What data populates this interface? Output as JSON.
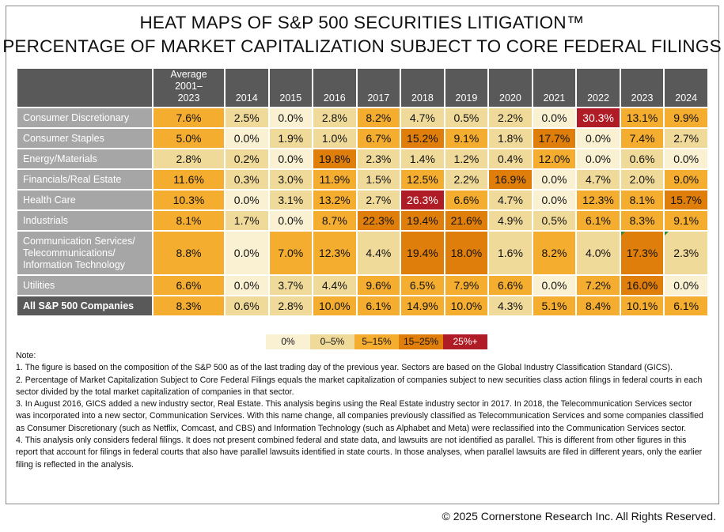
{
  "chart_data": {
    "type": "heatmap",
    "title": [
      "HEAT MAPS OF S&P 500 SECURITIES LITIGATION™",
      "PERCENTAGE OF MARKET CAPITALIZATION SUBJECT TO CORE FEDERAL FILINGS"
    ],
    "columns": [
      "Average 2001–2023",
      "2014",
      "2015",
      "2016",
      "2017",
      "2018",
      "2019",
      "2020",
      "2021",
      "2022",
      "2023",
      "2024"
    ],
    "rows": [
      {
        "label": "Consumer Discretionary",
        "values": [
          7.6,
          2.5,
          0.0,
          2.8,
          8.2,
          4.7,
          0.5,
          2.2,
          0.0,
          30.3,
          13.1,
          9.9
        ]
      },
      {
        "label": "Consumer Staples",
        "values": [
          5.0,
          0.0,
          1.9,
          1.0,
          6.7,
          15.2,
          9.1,
          1.8,
          17.7,
          0.0,
          7.4,
          2.7
        ]
      },
      {
        "label": "Energy/Materials",
        "values": [
          2.8,
          0.2,
          0.0,
          19.8,
          2.3,
          1.4,
          1.2,
          0.4,
          12.0,
          0.0,
          0.6,
          0.0
        ]
      },
      {
        "label": "Financials/Real Estate",
        "values": [
          11.6,
          0.3,
          3.0,
          11.9,
          1.5,
          12.5,
          2.2,
          16.9,
          0.0,
          4.7,
          2.0,
          9.0
        ]
      },
      {
        "label": "Health Care",
        "values": [
          10.3,
          0.0,
          3.1,
          13.2,
          2.7,
          26.3,
          6.6,
          4.7,
          0.0,
          12.3,
          8.1,
          15.7
        ]
      },
      {
        "label": "Industrials",
        "values": [
          8.1,
          1.7,
          0.0,
          8.7,
          22.3,
          19.4,
          21.6,
          4.9,
          0.5,
          6.1,
          8.3,
          9.1
        ]
      },
      {
        "label": "Communication Services/ Telecommunications/ Information Technology",
        "values": [
          8.8,
          0.0,
          7.0,
          12.3,
          4.4,
          19.4,
          18.0,
          1.6,
          8.2,
          4.0,
          17.3,
          2.3
        ]
      },
      {
        "label": "Utilities",
        "values": [
          6.6,
          0.0,
          3.7,
          4.4,
          9.6,
          6.5,
          7.9,
          6.6,
          0.0,
          7.2,
          16.0,
          0.0
        ]
      },
      {
        "label": "All S&P 500 Companies",
        "values": [
          8.3,
          0.6,
          2.8,
          10.0,
          6.1,
          14.9,
          10.0,
          4.3,
          5.1,
          8.4,
          10.1,
          6.1
        ]
      }
    ],
    "legend": [
      {
        "label": "0%",
        "color": "#FAF0D2"
      },
      {
        "label": "0–5%",
        "color": "#F0DA9A"
      },
      {
        "label": "5–15%",
        "color": "#F5AD30"
      },
      {
        "label": "15–25%",
        "color": "#E07E0B"
      },
      {
        "label": "25%+",
        "color": "#B01C26"
      }
    ]
  },
  "notes": [
    "Note:",
    "1. The figure is based on the composition of the S&P 500 as of the last trading day of the previous year. Sectors are based on the Global Industry Classification Standard (GICS).",
    "2. Percentage of Market Capitalization Subject to Core Federal Filings equals the market capitalization of companies subject to new securities class action filings in federal courts in each sector divided by the total market capitalization of companies in that sector.",
    "3. In August 2016, GICS added a new industry sector, Real Estate. This analysis begins using the Real Estate industry sector in 2017. In 2018, the Telecommunication Services sector was incorporated into a new sector, Communication Services. With this name change, all companies previously classified as Telecommunication Services and some companies classified as Consumer Discretionary (such as Netflix, Comcast, and CBS) and Information Technology (such as Alphabet and Meta) were reclassified into the Communication Services sector.",
    "4. This analysis only considers federal filings. It does not present combined federal and state data, and lawsuits are not identified as parallel. This is different from other figures in this report that account for filings in federal courts that also have parallel lawsuits identified in state courts. In those analyses, when parallel lawsuits are filed in different years, only the earlier filing is reflected in the analysis."
  ],
  "copyright": "© 2025 Cornerstone Research Inc. All Rights Reserved."
}
